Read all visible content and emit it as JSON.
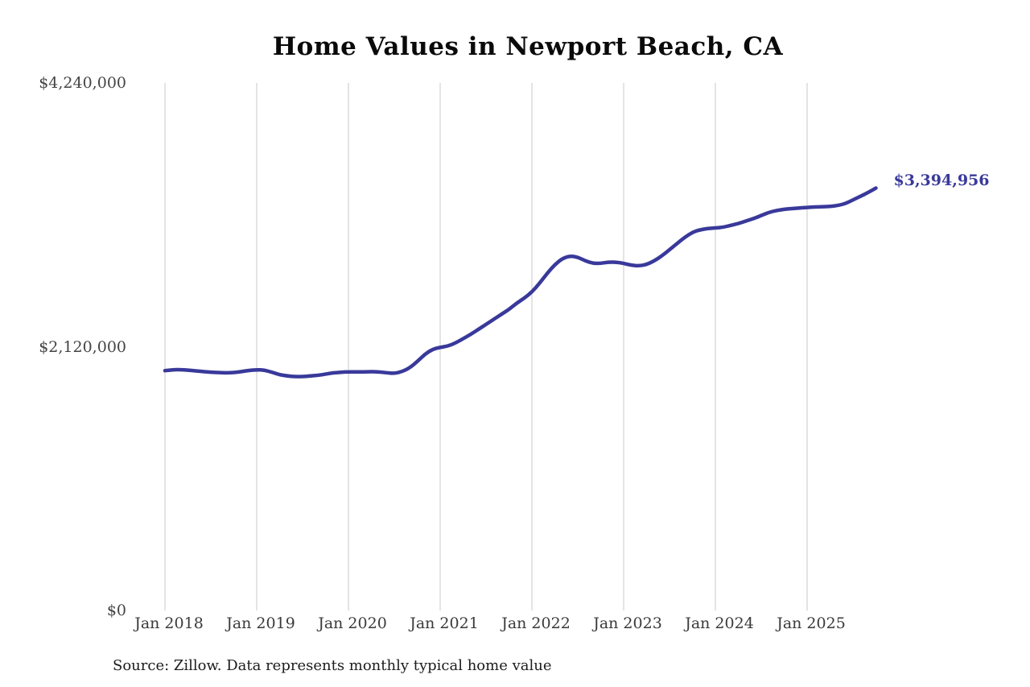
{
  "chart_data": {
    "type": "line",
    "title": "Home Values in Newport Beach, CA",
    "source_note": "Source: Zillow. Data represents monthly typical home value",
    "end_label": "$3,394,956",
    "end_value": 3394956,
    "line_color": "#39399b",
    "grid_color": "#c9c9c9",
    "ylim": [
      0,
      4240000
    ],
    "y_ticks": [
      "$0",
      "$2,120,000",
      "$4,240,000"
    ],
    "y_tick_values": [
      0,
      2120000,
      4240000
    ],
    "x_ticks": [
      "Jan 2018",
      "Jan 2019",
      "Jan 2020",
      "Jan 2021",
      "Jan 2022",
      "Jan 2023",
      "Jan 2024",
      "Jan 2025"
    ],
    "grid": "vertical-only",
    "legend": "none",
    "series": [
      {
        "name": "Monthly typical home value",
        "x_start": "2018-01",
        "x_interval": "month",
        "values": [
          1928000,
          1935000,
          1936000,
          1932000,
          1926000,
          1920000,
          1915000,
          1912000,
          1910000,
          1912000,
          1920000,
          1930000,
          1935000,
          1932000,
          1915000,
          1895000,
          1885000,
          1880000,
          1880000,
          1885000,
          1890000,
          1900000,
          1910000,
          1915000,
          1918000,
          1918000,
          1918000,
          1920000,
          1918000,
          1910000,
          1905000,
          1920000,
          1950000,
          2000000,
          2060000,
          2100000,
          2115000,
          2125000,
          2150000,
          2185000,
          2220000,
          2260000,
          2300000,
          2340000,
          2380000,
          2420000,
          2470000,
          2510000,
          2560000,
          2630000,
          2710000,
          2780000,
          2830000,
          2850000,
          2840000,
          2810000,
          2790000,
          2790000,
          2800000,
          2800000,
          2790000,
          2775000,
          2770000,
          2780000,
          2810000,
          2850000,
          2900000,
          2950000,
          3000000,
          3040000,
          3060000,
          3070000,
          3075000,
          3080000,
          3095000,
          3110000,
          3130000,
          3150000,
          3175000,
          3200000,
          3215000,
          3225000,
          3230000,
          3235000,
          3240000,
          3243000,
          3245000,
          3248000,
          3255000,
          3270000,
          3300000,
          3330000,
          3360000,
          3394956
        ]
      }
    ]
  }
}
